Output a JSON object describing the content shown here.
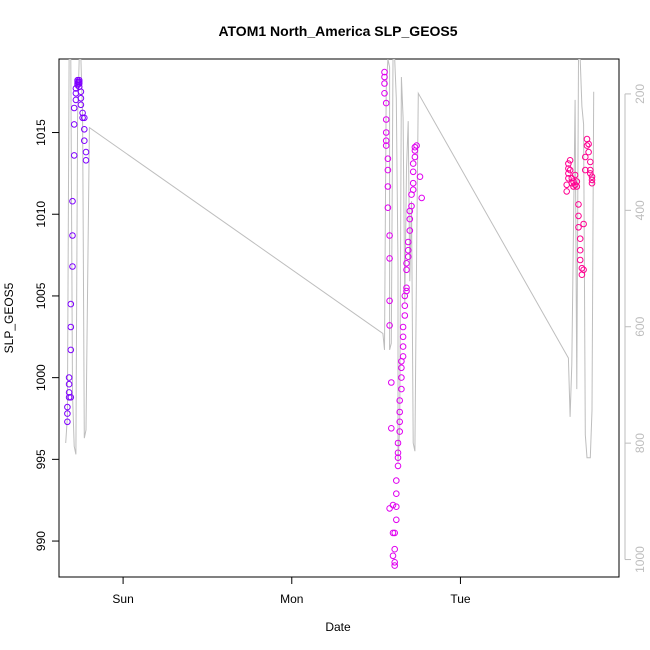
{
  "chart_data": {
    "type": "scatter",
    "title": "ATOM1 North_America SLP_GEOS5",
    "xlabel": "Date",
    "ylabel": "SLP_GEOS5",
    "xlim": [
      -0.38,
      2.94
    ],
    "ylim": [
      987.8,
      1019.5
    ],
    "x_ticks": [
      {
        "value": 0,
        "label": "Sun"
      },
      {
        "value": 1,
        "label": "Mon"
      },
      {
        "value": 2,
        "label": "Tue"
      }
    ],
    "y_ticks": [
      990,
      995,
      1000,
      1005,
      1010,
      1015
    ],
    "y2_ticks": [
      200,
      400,
      600,
      800,
      1000
    ],
    "y2_lim": [
      1030,
      140
    ],
    "colors": {
      "flight1": "#7f00ff",
      "flight2": "#e000f0",
      "flight3": "#ff0090",
      "pressure_line": "#bebebe",
      "right_axis": "#bdbdbd"
    },
    "series": [
      {
        "color": "#7f00ff",
        "points": [
          [
            -0.33,
            997.3
          ],
          [
            -0.33,
            997.8
          ],
          [
            -0.33,
            998.2
          ],
          [
            -0.32,
            998.8
          ],
          [
            -0.32,
            999.1
          ],
          [
            -0.32,
            999.6
          ],
          [
            -0.32,
            1000.0
          ],
          [
            -0.31,
            1001.7
          ],
          [
            -0.31,
            1003.1
          ],
          [
            -0.31,
            1004.5
          ],
          [
            -0.3,
            1006.8
          ],
          [
            -0.3,
            1008.7
          ],
          [
            -0.3,
            1010.8
          ],
          [
            -0.29,
            1013.6
          ],
          [
            -0.29,
            1015.5
          ],
          [
            -0.29,
            1016.5
          ],
          [
            -0.28,
            1017.0
          ],
          [
            -0.28,
            1017.4
          ],
          [
            -0.28,
            1017.7
          ],
          [
            -0.27,
            1017.9
          ],
          [
            -0.27,
            1018.0
          ],
          [
            -0.27,
            1018.1
          ],
          [
            -0.27,
            1018.2
          ],
          [
            -0.26,
            1018.2
          ],
          [
            -0.26,
            1018.1
          ],
          [
            -0.26,
            1018.0
          ],
          [
            -0.26,
            1017.8
          ],
          [
            -0.25,
            1017.5
          ],
          [
            -0.25,
            1017.1
          ],
          [
            -0.25,
            1016.7
          ],
          [
            -0.24,
            1016.2
          ],
          [
            -0.24,
            1015.9
          ],
          [
            -0.23,
            1015.9
          ],
          [
            -0.23,
            1015.2
          ],
          [
            -0.23,
            1014.5
          ],
          [
            -0.22,
            1013.8
          ],
          [
            -0.22,
            1013.3
          ],
          [
            -0.31,
            998.8
          ]
        ]
      },
      {
        "color": "#e000f0",
        "points": [
          [
            1.55,
            1018.7
          ],
          [
            1.55,
            1018.4
          ],
          [
            1.55,
            1018.0
          ],
          [
            1.55,
            1017.4
          ],
          [
            1.56,
            1016.8
          ],
          [
            1.56,
            1015.8
          ],
          [
            1.56,
            1015.0
          ],
          [
            1.56,
            1014.5
          ],
          [
            1.56,
            1014.2
          ],
          [
            1.57,
            1013.4
          ],
          [
            1.57,
            1012.7
          ],
          [
            1.57,
            1011.7
          ],
          [
            1.57,
            1010.4
          ],
          [
            1.58,
            1008.7
          ],
          [
            1.58,
            1007.3
          ],
          [
            1.58,
            1004.7
          ],
          [
            1.58,
            1003.2
          ],
          [
            1.59,
            999.7
          ],
          [
            1.59,
            996.9
          ],
          [
            1.6,
            992.2
          ],
          [
            1.6,
            990.5
          ],
          [
            1.6,
            989.1
          ],
          [
            1.61,
            988.7
          ],
          [
            1.61,
            988.5
          ],
          [
            1.61,
            989.5
          ],
          [
            1.61,
            990.5
          ],
          [
            1.62,
            991.3
          ],
          [
            1.62,
            992.1
          ],
          [
            1.62,
            992.9
          ],
          [
            1.62,
            993.7
          ],
          [
            1.63,
            994.6
          ],
          [
            1.63,
            995.1
          ],
          [
            1.63,
            995.4
          ],
          [
            1.63,
            996.0
          ],
          [
            1.64,
            996.7
          ],
          [
            1.64,
            997.3
          ],
          [
            1.64,
            997.9
          ],
          [
            1.64,
            998.6
          ],
          [
            1.65,
            999.3
          ],
          [
            1.65,
            1000.0
          ],
          [
            1.65,
            1000.6
          ],
          [
            1.66,
            1001.3
          ],
          [
            1.66,
            1001.9
          ],
          [
            1.66,
            1002.5
          ],
          [
            1.66,
            1003.1
          ],
          [
            1.67,
            1003.8
          ],
          [
            1.67,
            1004.4
          ],
          [
            1.67,
            1005.0
          ],
          [
            1.68,
            1005.5
          ],
          [
            1.68,
            1006.6
          ],
          [
            1.68,
            1007.0
          ],
          [
            1.69,
            1007.4
          ],
          [
            1.69,
            1007.8
          ],
          [
            1.69,
            1008.3
          ],
          [
            1.7,
            1009.0
          ],
          [
            1.7,
            1009.7
          ],
          [
            1.7,
            1010.2
          ],
          [
            1.71,
            1010.5
          ],
          [
            1.71,
            1011.2
          ],
          [
            1.72,
            1011.9
          ],
          [
            1.72,
            1012.6
          ],
          [
            1.72,
            1013.1
          ],
          [
            1.73,
            1013.5
          ],
          [
            1.73,
            1013.9
          ],
          [
            1.73,
            1014.1
          ],
          [
            1.74,
            1014.2
          ],
          [
            1.76,
            1012.3
          ],
          [
            1.77,
            1011.0
          ],
          [
            1.68,
            1005.3
          ],
          [
            1.65,
            1001.0
          ],
          [
            1.72,
            1011.5
          ],
          [
            1.58,
            992.0
          ]
        ]
      },
      {
        "color": "#ff0090",
        "points": [
          [
            2.63,
            1011.4
          ],
          [
            2.63,
            1011.8
          ],
          [
            2.64,
            1012.2
          ],
          [
            2.64,
            1012.5
          ],
          [
            2.64,
            1012.8
          ],
          [
            2.64,
            1013.1
          ],
          [
            2.65,
            1013.3
          ],
          [
            2.65,
            1012.7
          ],
          [
            2.66,
            1012.2
          ],
          [
            2.66,
            1011.9
          ],
          [
            2.67,
            1011.7
          ],
          [
            2.67,
            1012.0
          ],
          [
            2.68,
            1012.4
          ],
          [
            2.68,
            1011.8
          ],
          [
            2.69,
            1012.0
          ],
          [
            2.69,
            1011.7
          ],
          [
            2.7,
            1010.6
          ],
          [
            2.7,
            1009.9
          ],
          [
            2.7,
            1009.2
          ],
          [
            2.71,
            1008.5
          ],
          [
            2.71,
            1007.8
          ],
          [
            2.71,
            1007.2
          ],
          [
            2.72,
            1006.7
          ],
          [
            2.72,
            1006.3
          ],
          [
            2.73,
            1006.6
          ],
          [
            2.73,
            1009.4
          ],
          [
            2.74,
            1012.7
          ],
          [
            2.74,
            1013.5
          ],
          [
            2.75,
            1014.2
          ],
          [
            2.75,
            1014.6
          ],
          [
            2.76,
            1014.3
          ],
          [
            2.76,
            1013.8
          ],
          [
            2.77,
            1013.2
          ],
          [
            2.77,
            1012.7
          ],
          [
            2.78,
            1012.3
          ],
          [
            2.78,
            1011.9
          ],
          [
            2.78,
            1012.1
          ],
          [
            2.77,
            1012.5
          ]
        ]
      }
    ],
    "pressure_line": [
      [
        -0.34,
        996.0
      ],
      [
        -0.33,
        997.6
      ],
      [
        -0.32,
        1019.5
      ],
      [
        -0.31,
        1019.5
      ],
      [
        -0.3,
        999.0
      ],
      [
        -0.29,
        995.8
      ],
      [
        -0.28,
        995.3
      ],
      [
        -0.27,
        1016.0
      ],
      [
        -0.26,
        1019.5
      ],
      [
        -0.25,
        1019.5
      ],
      [
        -0.24,
        1016.0
      ],
      [
        -0.23,
        996.3
      ],
      [
        -0.22,
        996.8
      ],
      [
        -0.2,
        1015.3
      ],
      [
        1.54,
        1002.7
      ],
      [
        1.55,
        1001.7
      ],
      [
        1.56,
        1017.6
      ],
      [
        1.57,
        1019.5
      ],
      [
        1.58,
        1019.0
      ],
      [
        1.58,
        1001.7
      ],
      [
        1.59,
        1002.1
      ],
      [
        1.6,
        1019.5
      ],
      [
        1.61,
        1019.5
      ],
      [
        1.62,
        1017.1
      ],
      [
        1.63,
        1006.8
      ],
      [
        1.63,
        994.8
      ],
      [
        1.64,
        996.9
      ],
      [
        1.65,
        1018.4
      ],
      [
        1.66,
        1015.9
      ],
      [
        1.67,
        1004.6
      ],
      [
        1.68,
        1012.8
      ],
      [
        1.69,
        1015.7
      ],
      [
        1.7,
        1005.9
      ],
      [
        1.71,
        1010.8
      ],
      [
        1.72,
        996.0
      ],
      [
        1.73,
        995.5
      ],
      [
        1.74,
        1007.5
      ],
      [
        1.75,
        1017.4
      ],
      [
        2.64,
        1001.2
      ],
      [
        2.65,
        997.6
      ],
      [
        2.66,
        1000.8
      ],
      [
        2.67,
        1009.2
      ],
      [
        2.68,
        1017.0
      ],
      [
        2.69,
        999.3
      ],
      [
        2.7,
        1019.5
      ],
      [
        2.71,
        1019.5
      ],
      [
        2.72,
        1016.6
      ],
      [
        2.73,
        1015.5
      ],
      [
        2.74,
        996.5
      ],
      [
        2.75,
        995.1
      ],
      [
        2.77,
        995.1
      ],
      [
        2.78,
        998.0
      ],
      [
        2.79,
        1017.5
      ]
    ]
  }
}
